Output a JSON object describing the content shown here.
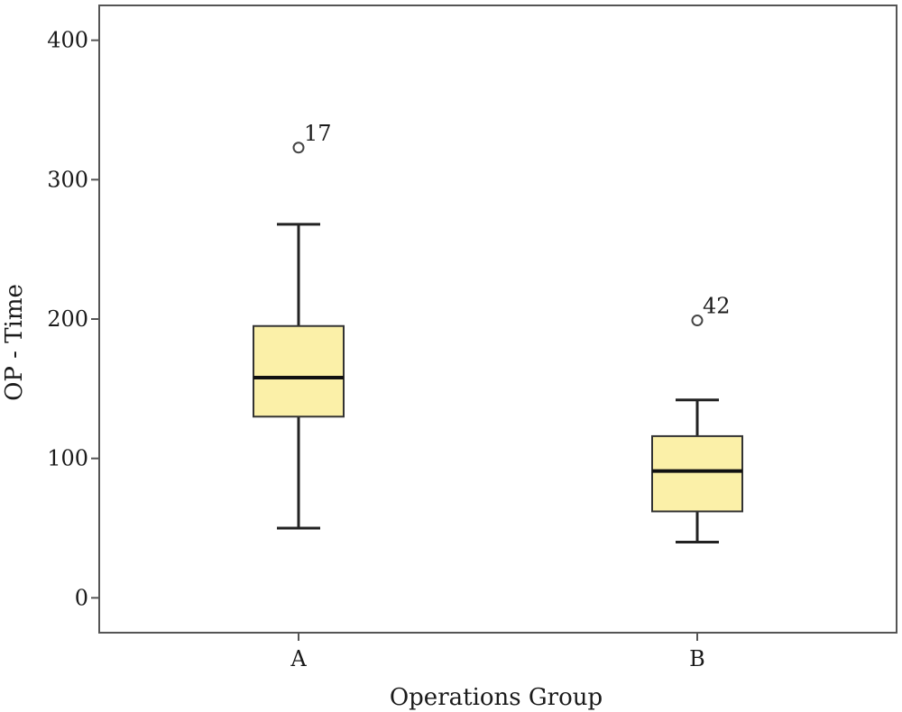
{
  "chart_data": {
    "type": "boxplot",
    "xlabel": "Operations Group",
    "ylabel": "OP - Time",
    "ylim": [
      -25,
      425
    ],
    "yticks": [
      0,
      100,
      200,
      300,
      400
    ],
    "grid": false,
    "box_color": "#fbf0a8",
    "categories": [
      "A",
      "B"
    ],
    "boxes": [
      {
        "category": "A",
        "whisker_low": 50,
        "q1": 130,
        "median": 158,
        "q3": 195,
        "whisker_high": 268,
        "outliers": [
          {
            "value": 323,
            "label": "17"
          }
        ]
      },
      {
        "category": "B",
        "whisker_low": 40,
        "q1": 62,
        "median": 91,
        "q3": 116,
        "whisker_high": 142,
        "outliers": [
          {
            "value": 199,
            "label": "42"
          }
        ]
      }
    ]
  }
}
